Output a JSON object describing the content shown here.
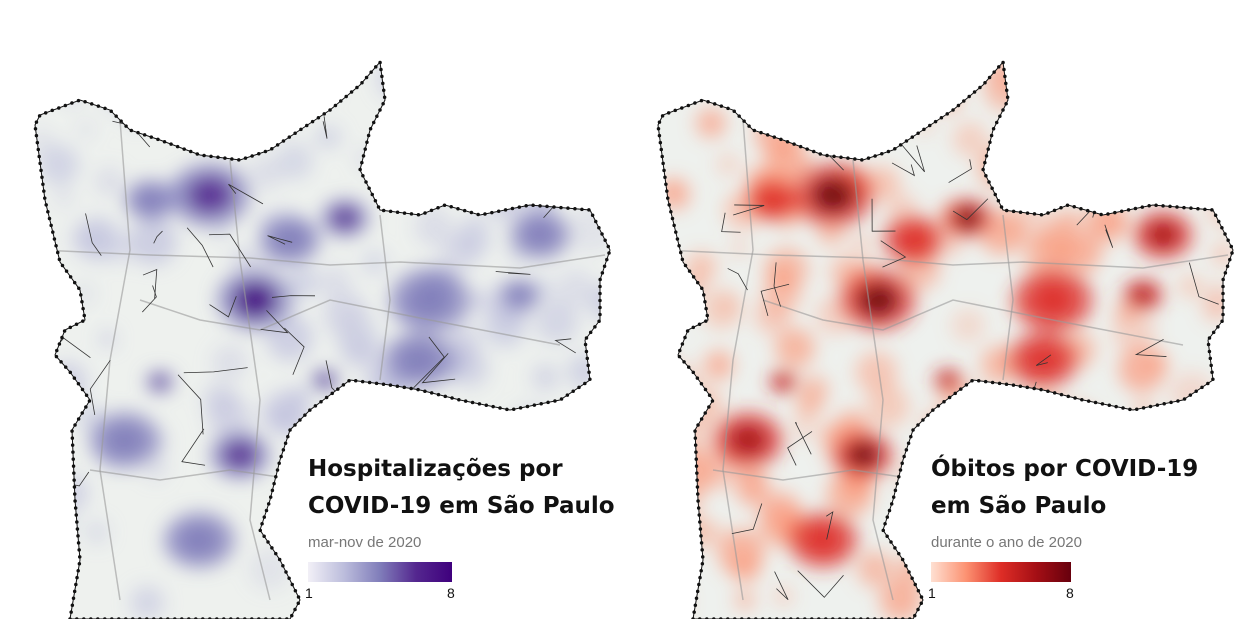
{
  "panels": [
    {
      "title_lines": [
        "Hospitalizações por",
        "COVID-19 em São Paulo"
      ],
      "subtitle": "mar-nov de 2020",
      "legend": {
        "min": "1",
        "max": "8",
        "colors": [
          "#f2f0f7",
          "#bcbddc",
          "#807dba",
          "#54278f",
          "#3f007d"
        ]
      }
    },
    {
      "title_lines": [
        "Óbitos por COVID-19",
        "em São Paulo"
      ],
      "subtitle": "durante o ano de 2020",
      "legend": {
        "min": "1",
        "max": "8",
        "colors": [
          "#fee0d2",
          "#fc9272",
          "#de2d26",
          "#a50f15",
          "#67000d"
        ]
      }
    }
  ]
}
